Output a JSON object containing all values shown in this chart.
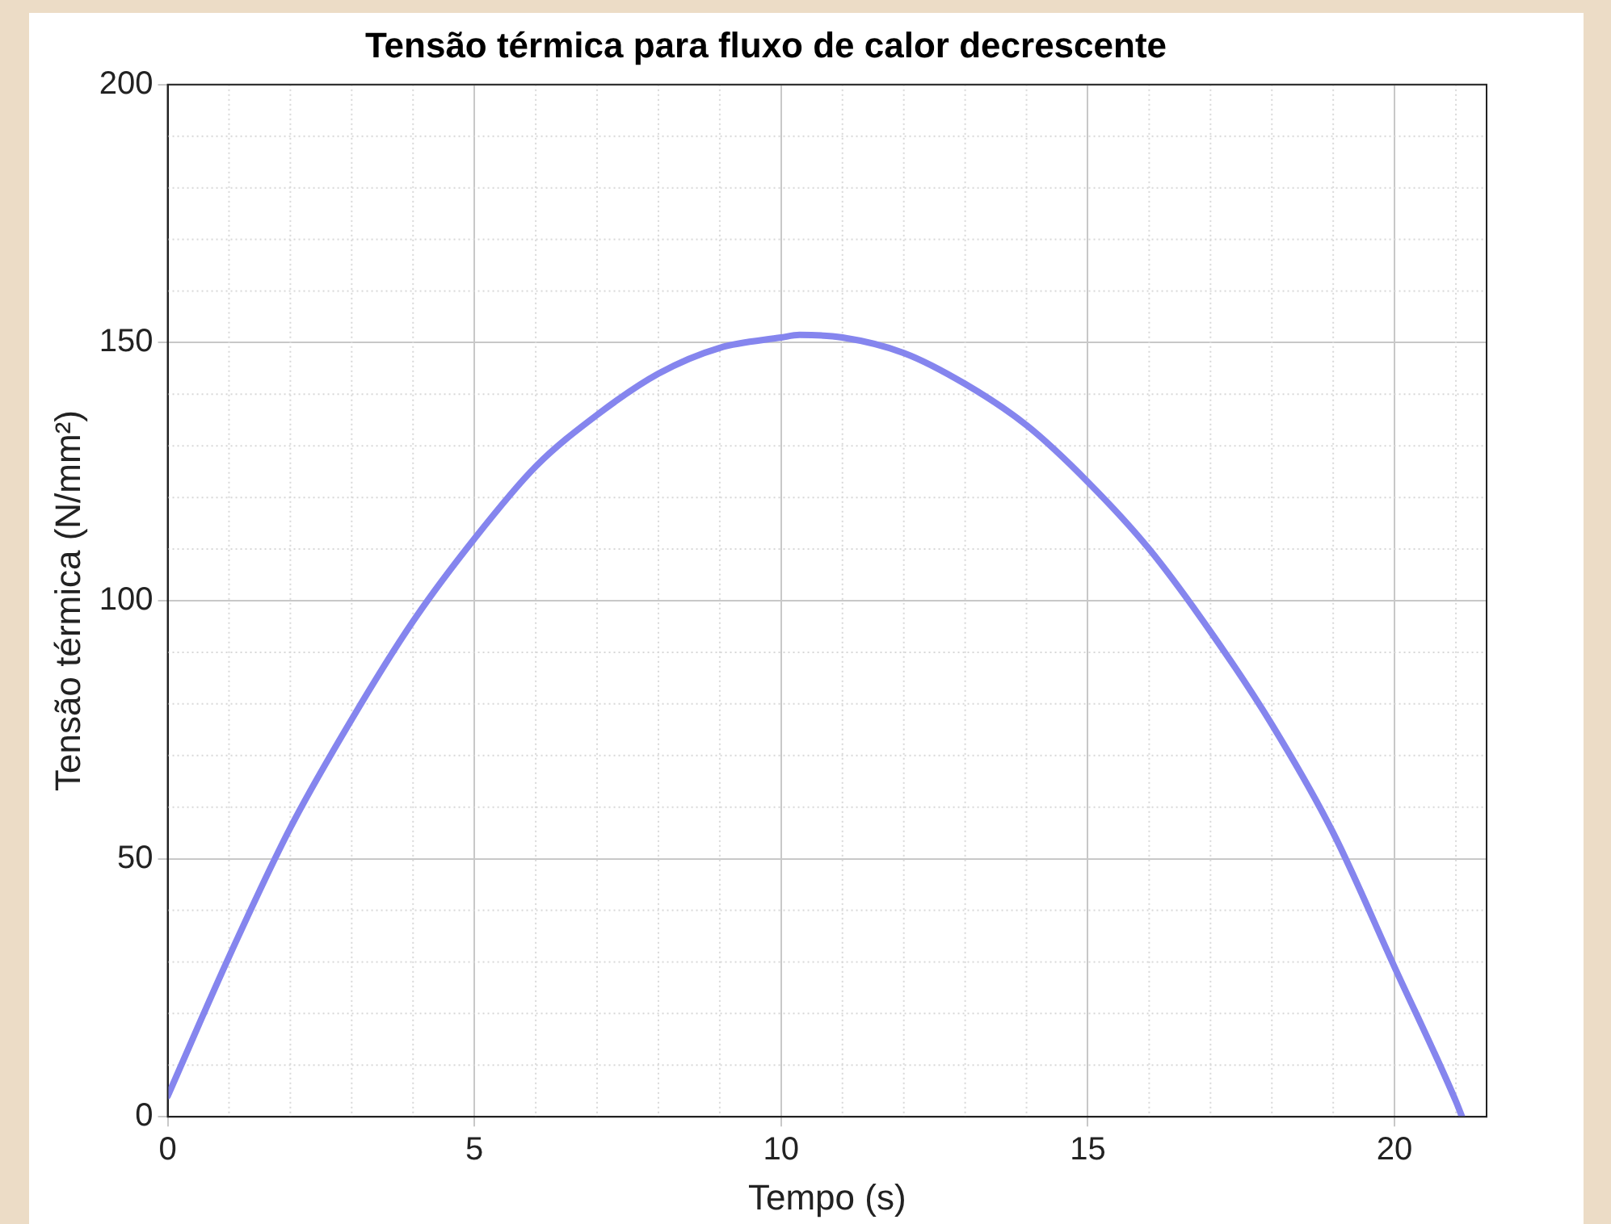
{
  "chart_data": {
    "type": "line",
    "title": "Tensão térmica para fluxo de calor decrescente",
    "xlabel": "Tempo (s)",
    "ylabel": "Tensão térmica (N/mm²)",
    "xlim": [
      0,
      21.5
    ],
    "xticks": [
      0,
      5,
      10,
      15,
      20
    ],
    "ylim": [
      0,
      200
    ],
    "yticks": [
      0,
      50,
      100,
      150,
      200
    ],
    "grid": true,
    "legend": false,
    "marker": "none",
    "line_style": "solid",
    "series": [
      {
        "color": "#8585ee",
        "x": [
          0,
          1,
          2,
          3,
          4,
          5,
          6,
          7,
          8,
          9,
          10,
          10.3,
          11,
          12,
          13,
          14,
          15,
          16,
          17,
          18,
          19,
          20,
          21,
          21.1
        ],
        "values": [
          4,
          31,
          56,
          77,
          96,
          112,
          126,
          136,
          144,
          149,
          151,
          151.5,
          151,
          148,
          142,
          134,
          123,
          110,
          94,
          76,
          55,
          29,
          3,
          0
        ]
      }
    ]
  }
}
